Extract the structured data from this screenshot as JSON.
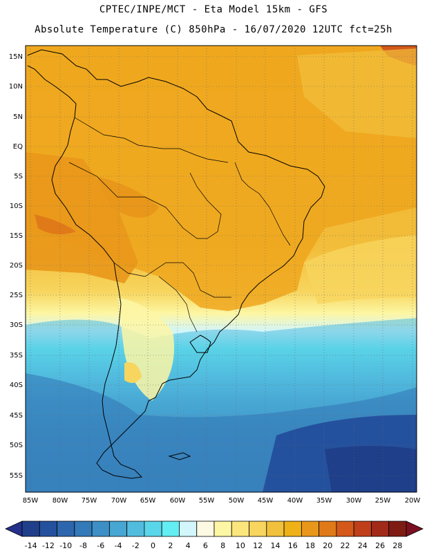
{
  "title_line1": "CPTEC/INPE/MCT -  Eta Model 15km - GFS",
  "title_line2": "Absolute Temperature (C) 850hPa - 16/07/2020 12UTC fct=25h",
  "lat_labels": [
    "15N",
    "10N",
    "5N",
    "EQ",
    "5S",
    "10S",
    "15S",
    "20S",
    "25S",
    "30S",
    "35S",
    "40S",
    "45S",
    "50S",
    "55S"
  ],
  "lon_labels": [
    "85W",
    "80W",
    "75W",
    "70W",
    "65W",
    "60W",
    "55W",
    "50W",
    "45W",
    "40W",
    "35W",
    "30W",
    "25W",
    "20W"
  ],
  "colorbar": {
    "labels": [
      "-14",
      "-12",
      "-10",
      "-8",
      "-6",
      "-4",
      "-2",
      "0",
      "2",
      "4",
      "6",
      "8",
      "10",
      "12",
      "14",
      "16",
      "18",
      "20",
      "22",
      "24",
      "26",
      "28"
    ],
    "colors": [
      "#1f3f8a",
      "#24519e",
      "#2e66ad",
      "#3479b8",
      "#3d8fc6",
      "#48a6d2",
      "#52bcdf",
      "#5ad6ea",
      "#62eef2",
      "#d2f6fb",
      "#fdf9e3",
      "#fdf6a4",
      "#fbe67e",
      "#f7d55e",
      "#f2c13c",
      "#eeb118",
      "#e9971a",
      "#e07a18",
      "#d3581a",
      "#bf3f1a",
      "#a12a18",
      "#7e1c14"
    ],
    "under_color": "#25308a",
    "over_color": "#7a1020"
  }
}
